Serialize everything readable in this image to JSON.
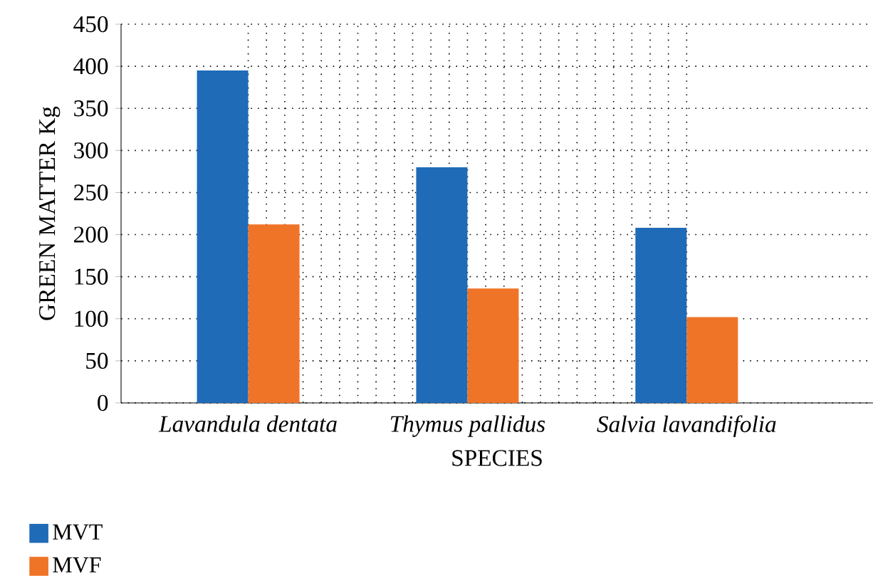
{
  "chart_data": {
    "type": "bar",
    "xlabel": "SPECIES",
    "ylabel": "GREEN MATTER Kg",
    "categories": [
      "Lavandula dentata",
      "Thymus pallidus",
      "Salvia lavandifolia"
    ],
    "series": [
      {
        "name": "MVT",
        "color": "#1f6bb8",
        "values": [
          395,
          280,
          208
        ]
      },
      {
        "name": "MVF",
        "color": "#f07427",
        "values": [
          212,
          136,
          102
        ]
      }
    ],
    "ylim": [
      0,
      450
    ],
    "yticks": [
      0,
      50,
      100,
      150,
      200,
      250,
      300,
      350,
      400,
      450
    ],
    "grid": true,
    "legend": "bottom left"
  }
}
